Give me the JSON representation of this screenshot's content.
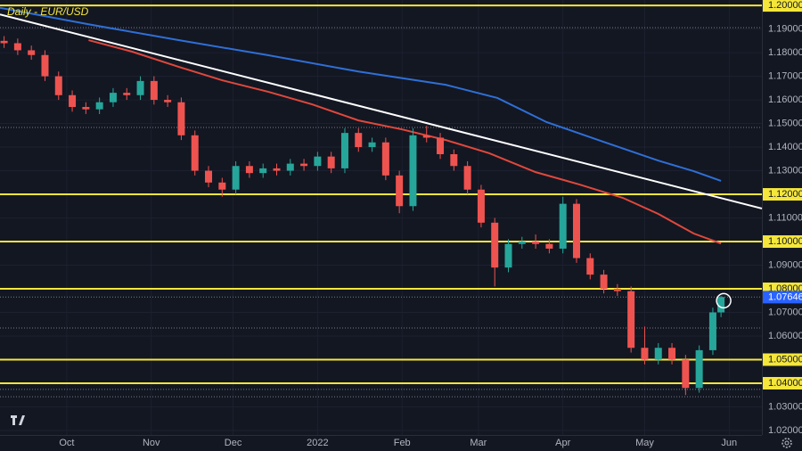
{
  "chart_data": {
    "type": "candlestick",
    "title": "Daily - EUR/USD",
    "x": [
      -23,
      -18,
      -13,
      -8,
      -3,
      2,
      7,
      12,
      17,
      22,
      27,
      32,
      37,
      42,
      47,
      52,
      57,
      62,
      67,
      72,
      77,
      82,
      87,
      92,
      97,
      102,
      107,
      112,
      117,
      122,
      127,
      132,
      137,
      142,
      147,
      152,
      157,
      162,
      167,
      172,
      177,
      182,
      187,
      192,
      197,
      202,
      207,
      212,
      217,
      222,
      227,
      232,
      237,
      240
    ],
    "open": [
      1.185,
      1.184,
      1.181,
      1.179,
      1.17,
      1.162,
      1.157,
      1.156,
      1.159,
      1.163,
      1.162,
      1.168,
      1.16,
      1.159,
      1.145,
      1.13,
      1.125,
      1.122,
      1.132,
      1.129,
      1.131,
      1.13,
      1.133,
      1.132,
      1.136,
      1.131,
      1.146,
      1.14,
      1.142,
      1.128,
      1.115,
      1.145,
      1.144,
      1.137,
      1.132,
      1.122,
      1.108,
      1.089,
      1.099,
      1.1,
      1.099,
      1.097,
      1.116,
      1.093,
      1.086,
      1.08,
      1.079,
      1.055,
      1.05,
      1.055,
      1.05,
      1.038,
      1.054,
      1.07
    ],
    "high": [
      1.187,
      1.186,
      1.183,
      1.181,
      1.172,
      1.164,
      1.159,
      1.161,
      1.165,
      1.165,
      1.17,
      1.17,
      1.162,
      1.161,
      1.147,
      1.132,
      1.127,
      1.134,
      1.134,
      1.133,
      1.133,
      1.135,
      1.135,
      1.138,
      1.138,
      1.148,
      1.148,
      1.144,
      1.144,
      1.13,
      1.148,
      1.149,
      1.146,
      1.139,
      1.134,
      1.124,
      1.11,
      1.101,
      1.102,
      1.103,
      1.101,
      1.119,
      1.118,
      1.095,
      1.088,
      1.082,
      1.081,
      1.064,
      1.057,
      1.057,
      1.052,
      1.056,
      1.072,
      1.077
    ],
    "low": [
      1.182,
      1.179,
      1.177,
      1.168,
      1.16,
      1.155,
      1.154,
      1.154,
      1.157,
      1.16,
      1.16,
      1.158,
      1.157,
      1.143,
      1.128,
      1.123,
      1.119,
      1.12,
      1.127,
      1.127,
      1.128,
      1.128,
      1.13,
      1.13,
      1.129,
      1.129,
      1.138,
      1.138,
      1.126,
      1.112,
      1.113,
      1.142,
      1.135,
      1.13,
      1.12,
      1.106,
      1.081,
      1.087,
      1.097,
      1.097,
      1.095,
      1.095,
      1.091,
      1.084,
      1.078,
      1.077,
      1.053,
      1.048,
      1.048,
      1.048,
      1.035,
      1.036,
      1.052,
      1.068
    ],
    "close": [
      1.184,
      1.181,
      1.179,
      1.17,
      1.162,
      1.157,
      1.156,
      1.159,
      1.163,
      1.162,
      1.168,
      1.16,
      1.159,
      1.145,
      1.13,
      1.125,
      1.122,
      1.132,
      1.129,
      1.131,
      1.13,
      1.133,
      1.132,
      1.136,
      1.131,
      1.146,
      1.14,
      1.142,
      1.128,
      1.115,
      1.145,
      1.144,
      1.137,
      1.132,
      1.122,
      1.108,
      1.089,
      1.099,
      1.1,
      1.099,
      1.097,
      1.116,
      1.093,
      1.086,
      1.08,
      1.079,
      1.055,
      1.05,
      1.055,
      1.05,
      1.038,
      1.054,
      1.07,
      1.0765
    ],
    "up_color": "#26a69a",
    "down_color": "#ef5350",
    "lines": [
      {
        "color": "#2f6fd6",
        "x": [
          -24.5,
          8,
          41,
          74,
          107,
          139,
          158,
          176,
          196,
          217,
          230,
          240
        ],
        "values": [
          1.199,
          1.192,
          1.1853,
          1.1789,
          1.172,
          1.1664,
          1.1608,
          1.1506,
          1.1426,
          1.1343,
          1.1298,
          1.1257
        ]
      },
      {
        "color": "#e0483c",
        "x": [
          8,
          24,
          41,
          57,
          74,
          90,
          107,
          123,
          139,
          155,
          172,
          188,
          204,
          217,
          230,
          240
        ],
        "values": [
          1.1853,
          1.1804,
          1.174,
          1.1683,
          1.1634,
          1.1581,
          1.1513,
          1.1475,
          1.143,
          1.1374,
          1.1294,
          1.1242,
          1.1185,
          1.1117,
          1.1034,
          1.0992
        ]
      },
      {
        "color": "#ffffff",
        "x": [
          -24.5,
          255
        ],
        "values": [
          1.1962,
          1.114
        ]
      }
    ],
    "levels": [
      1.2,
      1.12,
      1.1,
      1.08,
      1.05,
      1.04
    ],
    "level_color": "#f5e63b",
    "dotted_levels": [
      1.1906,
      1.1483,
      1.0765,
      1.0634,
      1.0374,
      1.0343
    ],
    "last_price": {
      "value": 1.07646,
      "label": "1.07646"
    },
    "xlim": [
      -24.5,
      255
    ],
    "ylim": [
      1.0181,
      1.2023
    ],
    "xticks": [
      {
        "value": 0,
        "label": "Oct"
      },
      {
        "value": 31,
        "label": "Nov"
      },
      {
        "value": 61,
        "label": "Dec"
      },
      {
        "value": 92,
        "label": "2022"
      },
      {
        "value": 123,
        "label": "Feb"
      },
      {
        "value": 151,
        "label": "Mar"
      },
      {
        "value": 182,
        "label": "Apr"
      },
      {
        "value": 212,
        "label": "May"
      },
      {
        "value": 243,
        "label": "Jun"
      }
    ],
    "yticks": [
      {
        "value": 1.02,
        "label": "1.02000"
      },
      {
        "value": 1.03,
        "label": "1.03000"
      },
      {
        "value": 1.04,
        "label": "1.04000"
      },
      {
        "value": 1.05,
        "label": "1.05000"
      },
      {
        "value": 1.06,
        "label": "1.06000"
      },
      {
        "value": 1.07,
        "label": "1.07000"
      },
      {
        "value": 1.08,
        "label": "1.08000"
      },
      {
        "value": 1.09,
        "label": "1.09000"
      },
      {
        "value": 1.1,
        "label": "1.10000"
      },
      {
        "value": 1.11,
        "label": "1.11000"
      },
      {
        "value": 1.12,
        "label": "1.12000"
      },
      {
        "value": 1.13,
        "label": "1.13000"
      },
      {
        "value": 1.14,
        "label": "1.14000"
      },
      {
        "value": 1.15,
        "label": "1.15000"
      },
      {
        "value": 1.16,
        "label": "1.16000"
      },
      {
        "value": 1.17,
        "label": "1.17000"
      },
      {
        "value": 1.18,
        "label": "1.18000"
      },
      {
        "value": 1.19,
        "label": "1.19000"
      },
      {
        "value": 1.2,
        "label": "1.20000"
      }
    ],
    "grid": true
  }
}
